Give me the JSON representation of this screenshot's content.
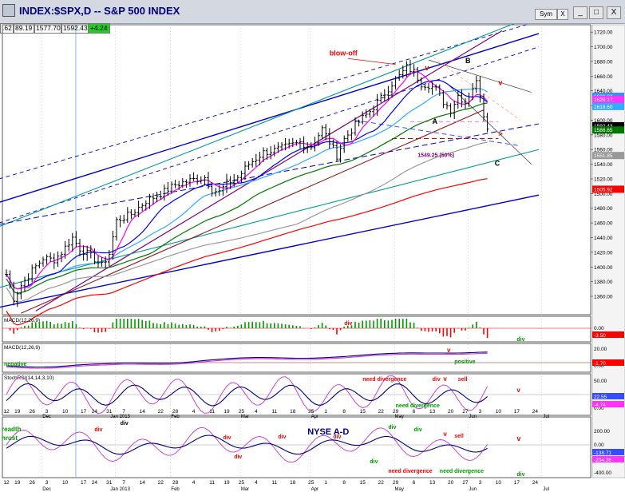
{
  "window": {
    "title": "INDEX:$SPX,D -- S&P 500 INDEX",
    "buttons": {
      "symbol": "Sym",
      "menu_close": "X",
      "minimize": "_",
      "maximize": "□",
      "close": "X"
    }
  },
  "ohlc_bar": {
    "open": "1592.43",
    "prev": "1577.70",
    "change": "+4.24",
    "left_fragment": ".62",
    "high_fragment": "89.19"
  },
  "colors": {
    "background": "#ffffff",
    "price_bars": "#000000",
    "ma_blue": "#0000ff",
    "ma_magenta": "#ff00ff",
    "ma_cyan": "#33aaff",
    "ma_green": "#007700",
    "ma_gray": "#999999",
    "ma_red": "#ff0000",
    "channel_blue": "#0000cc",
    "channel_purple": "#800080",
    "channel_teal": "#009999",
    "macd_hist_up": "#009900",
    "macd_hist_down": "#ff0000",
    "annotation_red": "#ff0000",
    "annotation_green": "#009900",
    "annotation_navy": "#000080"
  },
  "chart_data": {
    "type": "line",
    "title": "INDEX:$SPX,D -- S&P 500 INDEX",
    "price_axis": {
      "ylim": [
        1335,
        1730
      ],
      "ticks": [
        "1720.00",
        "1700.00",
        "1680.00",
        "1660.00",
        "1640.00",
        "1620.00",
        "1600.00",
        "1580.00",
        "1560.00",
        "1540.00",
        "1520.00",
        "1500.00",
        "1480.00",
        "1460.00",
        "1440.00",
        "1420.00",
        "1400.00",
        "1380.00",
        "1360.00"
      ]
    },
    "tags": [
      {
        "value": 1632.63,
        "label": "1632.63",
        "color": "#3a8cff"
      },
      {
        "value": 1628.17,
        "label": "1628.17",
        "color": "#ff33ff"
      },
      {
        "value": 1618.6,
        "label": "1618.60",
        "color": "#33aaff"
      },
      {
        "value": 1592.43,
        "label": "1592.43",
        "color": "#000000"
      },
      {
        "value": 1586.65,
        "label": "1586.65",
        "color": "#007700"
      },
      {
        "value": 1551.85,
        "label": "1551.85",
        "color": "#999999"
      },
      {
        "value": 1505.92,
        "label": "1505.92",
        "color": "#ff0000"
      }
    ],
    "x_axis": {
      "n_bars": 132,
      "day_labels": [
        {
          "i": 0,
          "t": "12"
        },
        {
          "i": 3,
          "t": "19"
        },
        {
          "i": 7,
          "t": "26"
        },
        {
          "i": 11,
          "t": "3"
        },
        {
          "i": 16,
          "t": "10"
        },
        {
          "i": 21,
          "t": "17"
        },
        {
          "i": 24,
          "t": "24"
        },
        {
          "i": 28,
          "t": "31"
        },
        {
          "i": 32,
          "t": "7"
        },
        {
          "i": 37,
          "t": "14"
        },
        {
          "i": 42,
          "t": "22"
        },
        {
          "i": 46,
          "t": "28"
        },
        {
          "i": 51,
          "t": "4"
        },
        {
          "i": 56,
          "t": "11"
        },
        {
          "i": 60,
          "t": "19"
        },
        {
          "i": 64,
          "t": "25"
        },
        {
          "i": 68,
          "t": "4"
        },
        {
          "i": 73,
          "t": "11"
        },
        {
          "i": 78,
          "t": "18"
        },
        {
          "i": 83,
          "t": "25"
        },
        {
          "i": 87,
          "t": "1"
        },
        {
          "i": 92,
          "t": "8"
        },
        {
          "i": 97,
          "t": "15"
        },
        {
          "i": 102,
          "t": "22"
        },
        {
          "i": 106,
          "t": "29"
        },
        {
          "i": 111,
          "t": "6"
        },
        {
          "i": 116,
          "t": "13"
        },
        {
          "i": 121,
          "t": "20"
        },
        {
          "i": 125,
          "t": "27"
        },
        {
          "i": 129,
          "t": "3"
        },
        {
          "i": 134,
          "t": "10"
        },
        {
          "i": 139,
          "t": "17"
        },
        {
          "i": 144,
          "t": "24"
        }
      ],
      "month_labels": [
        {
          "i": 11,
          "t": "Dec"
        },
        {
          "i": 31,
          "t": "Jan 2013"
        },
        {
          "i": 46,
          "t": "Feb"
        },
        {
          "i": 65,
          "t": "Mar"
        },
        {
          "i": 84,
          "t": "Apr"
        },
        {
          "i": 107,
          "t": "May"
        },
        {
          "i": 127,
          "t": "Jun"
        },
        {
          "i": 147,
          "t": "Jul"
        }
      ]
    },
    "price_annotations": [
      {
        "text": "blow-off",
        "color": "#ff0000"
      },
      {
        "text": "v",
        "color": "#ff0000"
      },
      {
        "text": "B",
        "color": "#000000"
      },
      {
        "text": "v",
        "color": "#ff0000"
      },
      {
        "text": "A",
        "color": "#000000"
      },
      {
        "text": "1549.25 (50%)",
        "color": "#800080"
      },
      {
        "text": "C",
        "color": "#000000"
      },
      {
        "text": ">",
        "color": "#ff0000"
      }
    ],
    "panels": [
      {
        "name": "MACD(12,26,9)",
        "kind": "histogram",
        "ticks": [
          "0.00"
        ],
        "tag": "-3.50",
        "annotations": [
          {
            "text": "div",
            "color": "#ff0000"
          },
          {
            "text": "div",
            "color": "#009900"
          }
        ]
      },
      {
        "name": "MACD(12,26,9)",
        "kind": "lines",
        "ticks": [
          "20.00",
          "0.00"
        ],
        "tag": "-1.70",
        "annotations": [
          {
            "text": "negative",
            "color": "#009900"
          },
          {
            "text": "positive",
            "color": "#009900"
          },
          {
            "text": "v",
            "color": "#ff0000"
          }
        ]
      },
      {
        "name": "StochRSI(14,14,3,10)",
        "kind": "oscillator",
        "ticks": [
          "50.00",
          "0.00"
        ],
        "tags": [
          "22.55",
          "-4.74"
        ],
        "annotations": [
          {
            "text": "need divergence",
            "color": "#ff0000"
          },
          {
            "text": "div",
            "color": "#ff0000"
          },
          {
            "text": "v",
            "color": "#ff0000"
          },
          {
            "text": "sell",
            "color": "#ff0000"
          },
          {
            "text": "need divergence",
            "color": "#009900"
          },
          {
            "text": "v",
            "color": "#ff0000"
          }
        ]
      },
      {
        "name": "NYSE A-D",
        "kind": "oscillator",
        "ticks": [
          "200.00",
          "0.00",
          "-200.00",
          "-400.00"
        ],
        "tags": [
          "-138.71",
          "-204.26"
        ],
        "annotations": [
          {
            "text": "readth",
            "color": "#009900"
          },
          {
            "text": "hrust",
            "color": "#009900"
          },
          {
            "text": "div",
            "color": "#000000"
          },
          {
            "text": "div",
            "color": "#ff0000"
          },
          {
            "text": "div",
            "color": "#ff0000"
          },
          {
            "text": "div",
            "color": "#ff0000"
          },
          {
            "text": "div",
            "color": "#ff0000"
          },
          {
            "text": "div",
            "color": "#ff0000"
          },
          {
            "text": "div",
            "color": "#009900"
          },
          {
            "text": "div",
            "color": "#009900"
          },
          {
            "text": "need divergence",
            "color": "#ff0000"
          },
          {
            "text": "div",
            "color": "#009900"
          },
          {
            "text": "v",
            "color": "#ff0000"
          },
          {
            "text": "sell",
            "color": "#ff0000"
          },
          {
            "text": "need divergence",
            "color": "#009900"
          },
          {
            "text": "v",
            "color": "#ff0000"
          },
          {
            "text": "div",
            "color": "#009900"
          }
        ]
      }
    ],
    "close_series_waypoints": [
      [
        0,
        1390
      ],
      [
        2,
        1357
      ],
      [
        4,
        1375
      ],
      [
        7,
        1395
      ],
      [
        10,
        1412
      ],
      [
        13,
        1410
      ],
      [
        15,
        1420
      ],
      [
        18,
        1440
      ],
      [
        20,
        1425
      ],
      [
        23,
        1415
      ],
      [
        26,
        1402
      ],
      [
        28,
        1418
      ],
      [
        30,
        1463
      ],
      [
        34,
        1472
      ],
      [
        38,
        1490
      ],
      [
        42,
        1500
      ],
      [
        46,
        1512
      ],
      [
        50,
        1518
      ],
      [
        54,
        1522
      ],
      [
        56,
        1505
      ],
      [
        58,
        1502
      ],
      [
        60,
        1514
      ],
      [
        63,
        1522
      ],
      [
        66,
        1540
      ],
      [
        70,
        1556
      ],
      [
        74,
        1560
      ],
      [
        77,
        1565
      ],
      [
        80,
        1570
      ],
      [
        83,
        1564
      ],
      [
        86,
        1588
      ],
      [
        88,
        1570
      ],
      [
        90,
        1552
      ],
      [
        92,
        1574
      ],
      [
        95,
        1593
      ],
      [
        99,
        1612
      ],
      [
        102,
        1630
      ],
      [
        105,
        1650
      ],
      [
        107,
        1660
      ],
      [
        109,
        1672
      ],
      [
        111,
        1666
      ],
      [
        113,
        1650
      ],
      [
        115,
        1648
      ],
      [
        117,
        1642
      ],
      [
        119,
        1625
      ],
      [
        121,
        1614
      ],
      [
        123,
        1634
      ],
      [
        125,
        1624
      ],
      [
        127,
        1645
      ],
      [
        128,
        1651
      ],
      [
        129,
        1636
      ],
      [
        130,
        1608
      ],
      [
        131,
        1593
      ]
    ]
  }
}
